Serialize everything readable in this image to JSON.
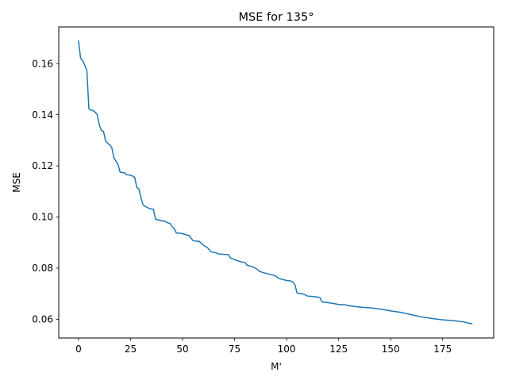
{
  "chart_data": {
    "type": "line",
    "title": "MSE for 135°",
    "xlabel": "M'",
    "ylabel": "MSE",
    "xlim": [
      -9.5,
      199.5
    ],
    "ylim": [
      0.0527,
      0.1743
    ],
    "xticks": [
      0,
      25,
      50,
      75,
      100,
      125,
      150,
      175
    ],
    "yticks": [
      0.06,
      0.08,
      0.1,
      0.12,
      0.14,
      0.16
    ],
    "ytick_labels": [
      "0.06",
      "0.08",
      "0.10",
      "0.12",
      "0.14",
      "0.16"
    ],
    "grid": false,
    "series": [
      {
        "color": "#1f77b4",
        "x": [
          0,
          1,
          2,
          3,
          4,
          5,
          6,
          7,
          8,
          9,
          10,
          11,
          12,
          13,
          14,
          15,
          16,
          17,
          18,
          19,
          20,
          22,
          23,
          25,
          26,
          27,
          28,
          29,
          30,
          31,
          32,
          34,
          35,
          36,
          37,
          40,
          41,
          43,
          44,
          45,
          46,
          47,
          50,
          51,
          53,
          54,
          55,
          56,
          58,
          60,
          62,
          63,
          64,
          66,
          67,
          70,
          72,
          73,
          75,
          78,
          80,
          81,
          84,
          85,
          86,
          87,
          90,
          92,
          94,
          95,
          96,
          98,
          100,
          102,
          103,
          104,
          105,
          108,
          110,
          115,
          116,
          117,
          120,
          123,
          125,
          128,
          130,
          132,
          135,
          140,
          143,
          145,
          147,
          150,
          155,
          160,
          165,
          170,
          175,
          180,
          185,
          188,
          189
        ],
        "values": [
          0.1688,
          0.1621,
          0.1612,
          0.1593,
          0.1573,
          0.1422,
          0.1418,
          0.1416,
          0.141,
          0.14,
          0.136,
          0.1338,
          0.1335,
          0.1298,
          0.1288,
          0.1282,
          0.1271,
          0.1232,
          0.1218,
          0.1205,
          0.1175,
          0.1173,
          0.1166,
          0.1163,
          0.116,
          0.1155,
          0.1116,
          0.111,
          0.1075,
          0.1048,
          0.1042,
          0.1033,
          0.1032,
          0.103,
          0.0992,
          0.0985,
          0.0985,
          0.0977,
          0.0975,
          0.0962,
          0.0955,
          0.0938,
          0.0935,
          0.0932,
          0.0928,
          0.0918,
          0.0908,
          0.0906,
          0.0905,
          0.089,
          0.088,
          0.087,
          0.0863,
          0.086,
          0.0856,
          0.0854,
          0.0853,
          0.084,
          0.0833,
          0.0825,
          0.0822,
          0.0812,
          0.0804,
          0.08,
          0.0795,
          0.0787,
          0.078,
          0.0775,
          0.0772,
          0.0768,
          0.076,
          0.0756,
          0.0752,
          0.075,
          0.0746,
          0.0735,
          0.0703,
          0.0699,
          0.0691,
          0.0687,
          0.0685,
          0.0668,
          0.0665,
          0.0661,
          0.0658,
          0.0657,
          0.0653,
          0.0651,
          0.0648,
          0.0645,
          0.0642,
          0.064,
          0.0637,
          0.0633,
          0.0627,
          0.0618,
          0.0609,
          0.0603,
          0.0598,
          0.0595,
          0.059,
          0.0584,
          0.0583
        ]
      }
    ]
  }
}
